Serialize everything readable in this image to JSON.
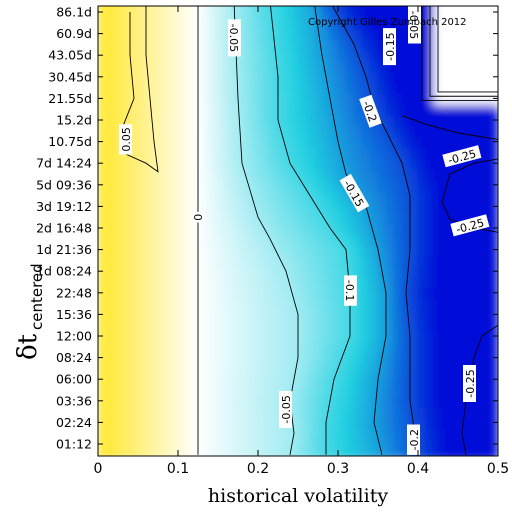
{
  "chart_data": {
    "type": "heatmap",
    "xlabel": "historical volatility",
    "ylabel_main": "δt",
    "ylabel_sub": "centered",
    "copyright": "Copyright Gilles Zumbach 2012",
    "xlim": [
      0,
      0.5
    ],
    "x_ticks": [
      "0",
      "0.1",
      "0.2",
      "0.3",
      "0.4",
      "0.5"
    ],
    "y_ticks": [
      "01:12",
      "02:24",
      "03:36",
      "06:00",
      "08:24",
      "12:00",
      "15:36",
      "22:48",
      "1d 08:24",
      "1d 21:36",
      "2d 16:48",
      "3d 19:12",
      "5d 09:36",
      "7d 14:24",
      "10.75d",
      "15.2d",
      "21.55d",
      "30.45d",
      "43.05d",
      "60.9d",
      "86.1d"
    ],
    "colorscale": {
      "positive_max": "#ffe830",
      "zero": "#ffffff",
      "negative_mid": "#20d0e0",
      "negative_max": "#0010d8"
    },
    "contour_levels": [
      {
        "level": 0.05,
        "label": "0.05",
        "hv": [
          [
            0.04,
            20
          ],
          [
            0.04,
            18
          ],
          [
            0.045,
            16
          ],
          [
            0.03,
            14.6
          ],
          [
            0.03,
            13.5
          ],
          [
            0.06,
            13
          ],
          [
            0.075,
            12.6
          ],
          [
            0.07,
            14
          ],
          [
            0.06,
            18
          ],
          [
            0.06,
            20.4
          ]
        ]
      },
      {
        "level": 0,
        "label": "0",
        "hv": [
          [
            0.125,
            20.5
          ],
          [
            0.125,
            16
          ],
          [
            0.125,
            12
          ],
          [
            0.125,
            8
          ],
          [
            0.125,
            4
          ],
          [
            0.125,
            0
          ],
          [
            0.125,
            -0.5
          ]
        ]
      },
      {
        "level": -0.05,
        "label": "-0.05",
        "hv": [
          [
            0.17,
            20.5
          ],
          [
            0.175,
            16
          ],
          [
            0.18,
            13
          ],
          [
            0.2,
            10.5
          ],
          [
            0.215,
            9.5
          ],
          [
            0.235,
            8
          ],
          [
            0.25,
            6
          ],
          [
            0.25,
            4
          ],
          [
            0.24,
            2
          ],
          [
            0.245,
            0.5
          ],
          [
            0.24,
            -0.5
          ]
        ]
      },
      {
        "level": -0.1,
        "label": "-0.1",
        "hv": [
          [
            0.215,
            20.5
          ],
          [
            0.225,
            17
          ],
          [
            0.225,
            15
          ],
          [
            0.24,
            13
          ],
          [
            0.265,
            11.5
          ],
          [
            0.29,
            10
          ],
          [
            0.31,
            9
          ],
          [
            0.315,
            7
          ],
          [
            0.315,
            5
          ],
          [
            0.295,
            3
          ],
          [
            0.285,
            1
          ],
          [
            0.285,
            -0.5
          ]
        ]
      },
      {
        "level": -0.15,
        "label": "-0.15",
        "hv": [
          [
            0.27,
            20.5
          ],
          [
            0.28,
            18
          ],
          [
            0.29,
            16
          ],
          [
            0.3,
            14
          ],
          [
            0.31,
            12.5
          ],
          [
            0.335,
            11
          ],
          [
            0.35,
            9
          ],
          [
            0.36,
            7
          ],
          [
            0.36,
            5
          ],
          [
            0.35,
            3
          ],
          [
            0.345,
            1
          ],
          [
            0.355,
            -0.5
          ]
        ]
      },
      {
        "level": -0.2,
        "label": "-0.2",
        "hv": [
          [
            0.29,
            20.5
          ],
          [
            0.32,
            18.5
          ],
          [
            0.335,
            17
          ],
          [
            0.345,
            15.6
          ],
          [
            0.36,
            14.5
          ],
          [
            0.38,
            13
          ],
          [
            0.39,
            11.5
          ],
          [
            0.39,
            9
          ],
          [
            0.385,
            7
          ],
          [
            0.39,
            5
          ],
          [
            0.39,
            2
          ],
          [
            0.4,
            -0.5
          ]
        ]
      },
      {
        "level": -0.25,
        "label": "-0.25",
        "hv": [
          [
            0.38,
            15.2
          ],
          [
            0.41,
            14.8
          ],
          [
            0.45,
            14.4
          ],
          [
            0.5,
            14.1
          ],
          [
            0.5,
            13.2
          ],
          [
            0.47,
            13
          ],
          [
            0.44,
            12.5
          ],
          [
            0.43,
            11.2
          ],
          [
            0.44,
            10.4
          ],
          [
            0.47,
            10
          ],
          [
            0.5,
            9.8
          ],
          [
            0.5,
            5.5
          ],
          [
            0.48,
            5
          ],
          [
            0.47,
            4
          ],
          [
            0.46,
            2
          ],
          [
            0.455,
            0.5
          ],
          [
            0.46,
            -0.5
          ]
        ]
      }
    ],
    "contour_labels": [
      {
        "label": "0.05",
        "x": 0.035,
        "y": 14.1,
        "angle": -90
      },
      {
        "label": "0",
        "x": 0.125,
        "y": 10.5,
        "angle": -90
      },
      {
        "label": "-0.05",
        "x": 0.17,
        "y": 18.8,
        "angle": 90
      },
      {
        "label": "-0.05",
        "x": 0.235,
        "y": 1.6,
        "angle": -90
      },
      {
        "label": "-0.1",
        "x": 0.315,
        "y": 7.1,
        "angle": 90
      },
      {
        "label": "-0.15",
        "x": 0.32,
        "y": 11.6,
        "angle": 60
      },
      {
        "label": "-0.15",
        "x": 0.365,
        "y": 18.4,
        "angle": -90
      },
      {
        "label": "-0.2",
        "x": 0.34,
        "y": 15.4,
        "angle": 70
      },
      {
        "label": "-0.2",
        "x": 0.395,
        "y": 0.2,
        "angle": -90
      },
      {
        "label": "-0.25",
        "x": 0.455,
        "y": 13.3,
        "angle": -15
      },
      {
        "label": "-0.25",
        "x": 0.465,
        "y": 10.1,
        "angle": -15
      },
      {
        "label": "-0.25",
        "x": 0.465,
        "y": 2.8,
        "angle": -90
      },
      {
        "label": "-0.05",
        "x": 0.395,
        "y": 19.4,
        "angle": 90
      }
    ]
  }
}
